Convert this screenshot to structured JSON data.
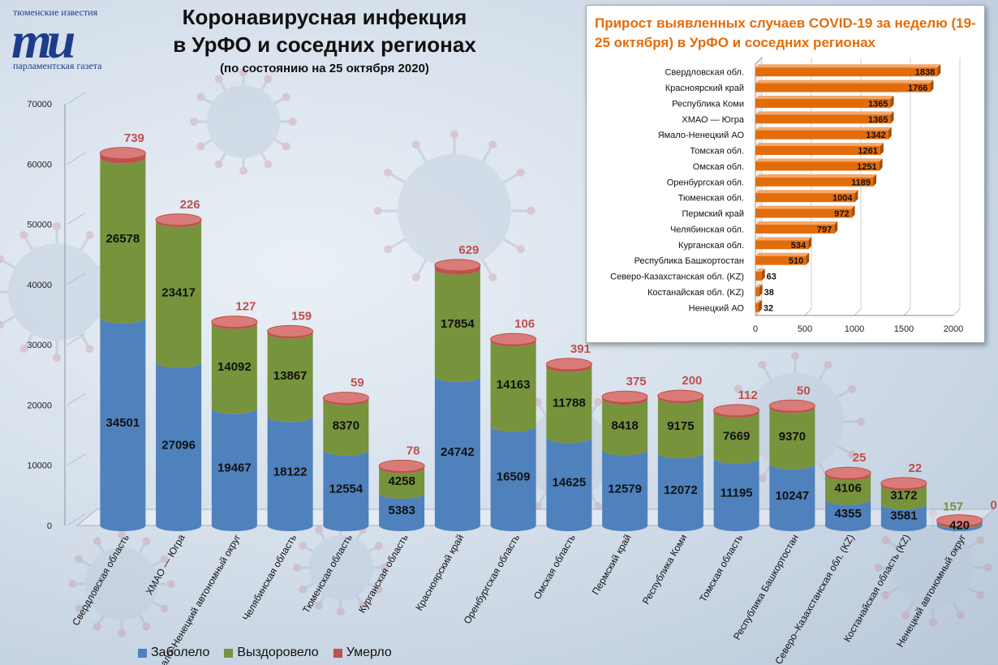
{
  "logo": {
    "top_text": "тюменские известия",
    "mark": "ти",
    "bottom_text": "парламентская газета"
  },
  "header": {
    "title_line1": "Коронавирусная инфекция",
    "title_line2": "в УрФО и соседних регионах",
    "subtitle": "(по состоянию на 25 октября 2020)"
  },
  "colors": {
    "sick": "#4f81bd",
    "recovered": "#77933c",
    "dead": "#c0504d",
    "bar_orange": "#e36c0a",
    "dead_label": "#c0504d",
    "accent_title": "#e36c0a"
  },
  "chart_data": [
    {
      "type": "bar",
      "stacked": true,
      "title": "Коронавирусная инфекция в УрФО и соседних регионах",
      "subtitle": "(по состоянию на 25 октября 2020)",
      "categories": [
        "Свердловская область",
        "ХМАО — Югра",
        "Ямало–Ненецкий автономный округ",
        "Челябинская область",
        "Тюменская область",
        "Курганская область",
        "Красноярский край",
        "Оренбургская область",
        "Омская область",
        "Пермский край",
        "Республика Коми",
        "Томская область",
        "Республика Башкортостан",
        "Северо–Казахстанская обл. (KZ)",
        "Костанайская область (KZ)",
        "Ненецкий автономный округ"
      ],
      "series": [
        {
          "name": "Заболело",
          "values": [
            34501,
            27096,
            19467,
            18122,
            12554,
            5383,
            24742,
            16509,
            14625,
            12579,
            12072,
            11195,
            10247,
            4355,
            3581,
            420
          ]
        },
        {
          "name": "Выздоровело",
          "values": [
            26578,
            23417,
            14092,
            13867,
            8370,
            4258,
            17854,
            14163,
            11788,
            8418,
            9175,
            7669,
            9370,
            4106,
            3172,
            157
          ]
        },
        {
          "name": "Умерло",
          "values": [
            739,
            226,
            127,
            159,
            59,
            78,
            629,
            106,
            391,
            375,
            200,
            112,
            50,
            25,
            22,
            0
          ]
        }
      ],
      "y_ticks": [
        "0",
        "10000",
        "20000",
        "30000",
        "40000",
        "50000",
        "60000",
        "70000"
      ],
      "ylim": [
        0,
        70000
      ],
      "legend_position": "bottom"
    },
    {
      "type": "bar",
      "orientation": "horizontal",
      "title": "Прирост выявленных случаев COVID-19 за неделю (19-25 октября) в УрФО и соседних регионах",
      "categories": [
        "Свердловская обл.",
        "Красноярский край",
        "Республика Коми",
        "ХМАО — Югра",
        "Ямало-Ненецкий АО",
        "Томская обл.",
        "Омская обл.",
        "Оренбургская обл.",
        "Тюменская обл.",
        "Пермский край",
        "Челябинская обл.",
        "Курганская обл.",
        "Республика Башкортостан",
        "Северо-Казахстанская обл. (KZ)",
        "Костанайская обл. (KZ)",
        "Ненецкий АО"
      ],
      "values": [
        1838,
        1766,
        1365,
        1365,
        1342,
        1261,
        1251,
        1189,
        1004,
        972,
        797,
        534,
        510,
        63,
        38,
        32
      ],
      "x_ticks": [
        "0",
        "500",
        "1000",
        "1500",
        "2000"
      ],
      "xlim": [
        0,
        2000
      ]
    }
  ]
}
